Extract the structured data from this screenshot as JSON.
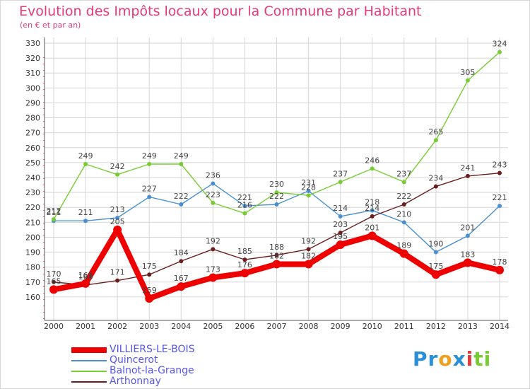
{
  "chart_data": {
    "type": "line",
    "title": "Evolution des Impôts locaux pour la Commune par Habitant",
    "subtitle": "(en € et par an)",
    "x": [
      "2000",
      "2001",
      "2002",
      "2003",
      "2004",
      "2005",
      "2006",
      "2007",
      "2008",
      "2009",
      "2010",
      "2011",
      "2012",
      "2013",
      "2014"
    ],
    "ylim": [
      150,
      330
    ],
    "yticks": [
      160,
      170,
      180,
      190,
      200,
      210,
      220,
      230,
      240,
      250,
      260,
      270,
      280,
      290,
      300,
      310,
      320,
      330
    ],
    "series": [
      {
        "name": "VILLIERS-LE-BOIS",
        "color": "#ee0000",
        "values": [
          165,
          169,
          205,
          159,
          167,
          173,
          176,
          182,
          182,
          195,
          201,
          189,
          175,
          183,
          178
        ]
      },
      {
        "name": "Quincerot",
        "color": "#4a90d0",
        "values": [
          211,
          211,
          213,
          227,
          222,
          236,
          221,
          222,
          231,
          214,
          218,
          210,
          190,
          201,
          221
        ]
      },
      {
        "name": "Balnot-la-Grange",
        "color": "#77cc33",
        "values": [
          212,
          249,
          242,
          249,
          249,
          223,
          216,
          230,
          228,
          237,
          246,
          237,
          265,
          305,
          324
        ]
      },
      {
        "name": "Arthonnay",
        "color": "#6b1e1e",
        "values": [
          170,
          168,
          171,
          175,
          184,
          192,
          185,
          188,
          192,
          203,
          214,
          222,
          234,
          241,
          243
        ]
      }
    ],
    "legend_position": "bottom-left"
  },
  "logo": {
    "text": "Proxiti",
    "letters": [
      "P",
      "r",
      "o",
      "x",
      "i",
      "t",
      "i"
    ],
    "colors": [
      "#2b8fd6",
      "#2b8fd6",
      "#f0a020",
      "#2b8fd6",
      "#e03a3a",
      "#77cc33",
      "#77cc33"
    ]
  }
}
